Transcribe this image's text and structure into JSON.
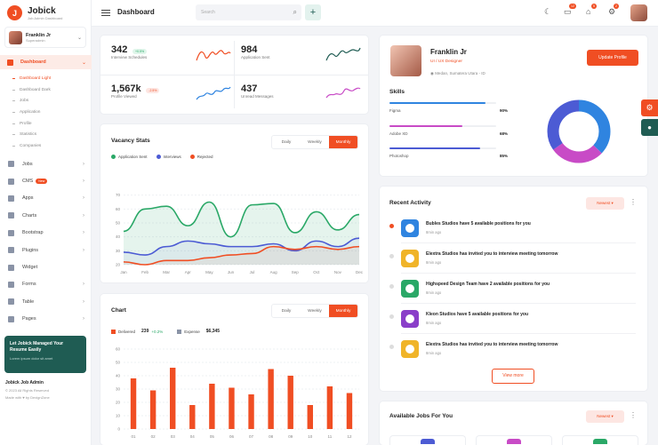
{
  "sidebar": {
    "brand_name": "Jobick",
    "brand_sub": "Job Admin Dashboard",
    "user_name": "Franklin Jr",
    "user_role": "Superadmin",
    "active_item": "Dashboard",
    "submenu": [
      "Dashboard Light",
      "Dashboard Dark",
      "Jobs",
      "Application",
      "Profile",
      "Statistics",
      "Companies"
    ],
    "items": [
      {
        "label": "Jobs",
        "icon": "briefcase-icon"
      },
      {
        "label": "CMS",
        "icon": "gear-icon",
        "badge": "New"
      },
      {
        "label": "Apps",
        "icon": "grid-icon"
      },
      {
        "label": "Charts",
        "icon": "chart-icon"
      },
      {
        "label": "Bootstrap",
        "icon": "layers-icon"
      },
      {
        "label": "Plugins",
        "icon": "heart-icon"
      },
      {
        "label": "Widget",
        "icon": "widget-icon"
      },
      {
        "label": "Forms",
        "icon": "form-icon"
      },
      {
        "label": "Table",
        "icon": "table-icon"
      },
      {
        "label": "Pages",
        "icon": "pages-icon"
      }
    ],
    "promo_title": "Let Jobick Managed Your Resume Easily",
    "promo_sub": "Lorem ipsum dolor sit amet",
    "footer_title": "Jobick Job Admin",
    "footer_copy": "© 2023 All Rights Reserved",
    "footer_made": "Made with ♥ by DexignZone"
  },
  "header": {
    "title": "Dashboard",
    "search_placeholder": "Search",
    "notif_counts": [
      "12",
      "5",
      "2"
    ]
  },
  "stats": [
    {
      "value": "342",
      "label": "Interview Schedules",
      "badge": "+0.5%",
      "trend": "red"
    },
    {
      "value": "984",
      "label": "Application Sent",
      "trend": "green"
    },
    {
      "value": "1,567k",
      "label": "Profile Viewed",
      "badge": "-2.5%",
      "trend": "blue"
    },
    {
      "value": "437",
      "label": "Unread Messages",
      "trend": "purple"
    }
  ],
  "vacancy": {
    "title": "Vacancy Stats",
    "tabs": [
      "Daily",
      "Weekly",
      "Monthly"
    ],
    "active_tab": "Monthly",
    "legend": [
      "Application Sent",
      "Interviews",
      "Rejected"
    ]
  },
  "chart2": {
    "title": "Chart",
    "tabs": [
      "Daily",
      "Weekly",
      "Monthly"
    ],
    "active_tab": "Monthly",
    "delivered_label": "Delivered",
    "delivered_value": "239",
    "delivered_change": "+0.2%",
    "expense_label": "Expense",
    "expense_value": "$6,345"
  },
  "profile": {
    "name": "Franklin Jr",
    "role": "UI / UX Designer",
    "location": "Medan, Sumatera Utara - ID",
    "update_button": "Update Profile",
    "skills_title": "Skills",
    "skills": [
      {
        "name": "Figma",
        "value": "90%",
        "pct": 0.9,
        "color": "#2f84e0"
      },
      {
        "name": "Adobe XD",
        "value": "68%",
        "pct": 0.68,
        "color": "#c84bc6"
      },
      {
        "name": "Photoshop",
        "value": "85%",
        "pct": 0.85,
        "color": "#4c5bd4"
      }
    ]
  },
  "activity": {
    "title": "Recent Activity",
    "filter": "Newest",
    "items": [
      {
        "text": "Bubles Studios have 5 available positions for you",
        "time": "8min ago",
        "color": "#2f84e0",
        "active": true
      },
      {
        "text": "Elextra Studios has invited you to interview meeting tomorrow",
        "time": "8min ago",
        "color": "#f0b429",
        "active": false
      },
      {
        "text": "Highspeed Design Team have 2 available positions for you",
        "time": "8min ago",
        "color": "#2aa867",
        "active": false
      },
      {
        "text": "Kleon Studios have 5 available positions for you",
        "time": "8min ago",
        "color": "#8a3ec9",
        "active": false
      },
      {
        "text": "Elextra Studios has invited you to interview meeting tomorrow",
        "time": "8min ago",
        "color": "#f0b429",
        "active": false
      }
    ],
    "view_more": "View more"
  },
  "jobs": {
    "title": "Available Jobs For You",
    "filter": "Newest"
  },
  "colors": {
    "accent": "#f04e23",
    "green": "#2aa867",
    "blue": "#2f84e0",
    "purple": "#c84bc6"
  },
  "chart_data": [
    {
      "type": "line",
      "title": "Vacancy Stats",
      "categories": [
        "Jan",
        "Feb",
        "Mar",
        "Apr",
        "May",
        "Jun",
        "Jul",
        "Aug",
        "Sep",
        "Oct",
        "Nov",
        "Dec"
      ],
      "ylim": [
        20,
        80
      ],
      "yticks": [
        20,
        30,
        40,
        50,
        60,
        70
      ],
      "series": [
        {
          "name": "Application Sent",
          "color": "#2aa867",
          "values": [
            44,
            60,
            62,
            48,
            65,
            40,
            63,
            64,
            43,
            58,
            45,
            56
          ]
        },
        {
          "name": "Interviews",
          "color": "#4c5bd4",
          "values": [
            29,
            27,
            33,
            37,
            35,
            33,
            33,
            35,
            30,
            37,
            33,
            39
          ]
        },
        {
          "name": "Rejected",
          "color": "#f04e23",
          "values": [
            22,
            20,
            23,
            23,
            25,
            27,
            28,
            33,
            31,
            33,
            31,
            33
          ]
        }
      ]
    },
    {
      "type": "bar",
      "title": "Chart",
      "categories": [
        "01",
        "02",
        "03",
        "04",
        "05",
        "06",
        "07",
        "08",
        "09",
        "10",
        "11",
        "12"
      ],
      "ylim": [
        0,
        60
      ],
      "yticks": [
        0,
        10,
        20,
        30,
        40,
        50,
        60
      ],
      "series": [
        {
          "name": "Delivered",
          "color": "#f04e23",
          "values": [
            38,
            29,
            46,
            18,
            34,
            31,
            26,
            45,
            40,
            18,
            32,
            27
          ]
        }
      ]
    },
    {
      "type": "pie",
      "values": [
        90,
        68,
        85
      ],
      "colors": [
        "#2f84e0",
        "#c84bc6",
        "#4c5bd4"
      ]
    }
  ]
}
